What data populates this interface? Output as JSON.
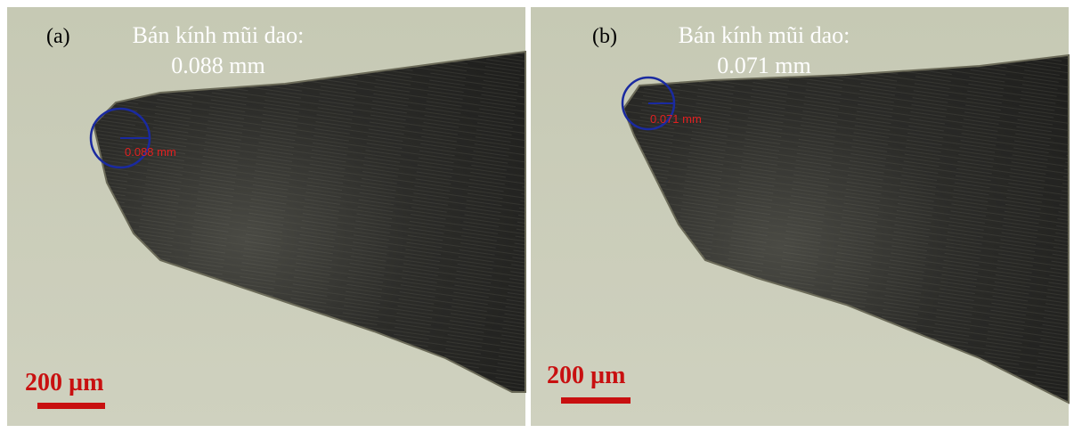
{
  "panels": [
    {
      "label": "(a)",
      "caption_line1": "Bán kính mũi dao:",
      "caption_line2": "0.088 mm",
      "measurement": "0.088 mm",
      "scale_bar": "200 µm"
    },
    {
      "label": "(b)",
      "caption_line1": "Bán kính mũi dao:",
      "caption_line2": "0.071 mm",
      "measurement": "0.071 mm",
      "scale_bar": "200 µm"
    }
  ]
}
